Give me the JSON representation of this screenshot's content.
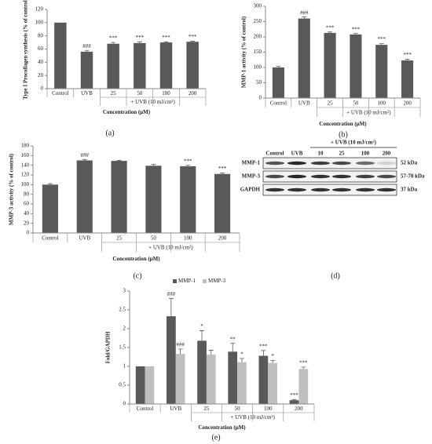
{
  "chart_data": [
    {
      "type": "bar",
      "caption": "(a)",
      "y_label": "Type I Procollagen synthesis (% of control)",
      "x_label": "Concentration (μM)",
      "group_label": "+ UVB (10 mJ/cm²)",
      "categories": [
        "Control",
        "UVB",
        "25",
        "50",
        "100",
        "200"
      ],
      "values": [
        100,
        56,
        68,
        69,
        70,
        71
      ],
      "errors": [
        0,
        2,
        2,
        2,
        1,
        1
      ],
      "sig_labels": [
        null,
        "###",
        "***",
        "***",
        "***",
        "***"
      ],
      "color": "#595959",
      "ylim": [
        0,
        120
      ],
      "yticks": [
        0,
        20,
        40,
        60,
        80,
        100,
        120
      ]
    },
    {
      "type": "bar",
      "caption": "(b)",
      "y_label": "MMP-1  activity (% of control)",
      "x_label": "Concentration (μM)",
      "group_label": "+ UVB (10 mJ/cm²)",
      "categories": [
        "Control",
        "UVB",
        "25",
        "50",
        "100",
        "200"
      ],
      "values": [
        100,
        260,
        213,
        208,
        174,
        123
      ],
      "errors": [
        4,
        5,
        3,
        3,
        4,
        4
      ],
      "sig_labels": [
        null,
        "###",
        "***",
        "***",
        "***",
        "***"
      ],
      "color": "#595959",
      "ylim": [
        0,
        300
      ],
      "yticks": [
        0,
        50,
        100,
        150,
        200,
        250,
        300
      ]
    },
    {
      "type": "bar",
      "caption": "(c)",
      "y_label": "MMP-3  activity (% of control)",
      "x_label": "Concentration (μM)",
      "group_label": "+ UVB (10 mJ/cm²)",
      "categories": [
        "Control",
        "UVB",
        "25",
        "50",
        "100",
        "200"
      ],
      "values": [
        100,
        150,
        149,
        139,
        138,
        122
      ],
      "errors": [
        2,
        2,
        1,
        3,
        2,
        2
      ],
      "sig_labels": [
        null,
        "###",
        null,
        null,
        "***",
        "***"
      ],
      "color": "#595959",
      "ylim": [
        0,
        180
      ],
      "yticks": [
        0,
        20,
        40,
        60,
        80,
        100,
        120,
        140,
        160,
        180
      ]
    },
    {
      "type": "grouped-bar",
      "caption": "(e)",
      "y_label": "Fold/GAPDH",
      "x_label": "Concentration (μM)",
      "group_label": "+ UVB (10 mJ/cm²)",
      "categories": [
        "Control",
        "UVB",
        "25",
        "50",
        "100",
        "200"
      ],
      "series": [
        {
          "name": "MMP-1",
          "color": "#595959",
          "values": [
            1,
            2.33,
            1.68,
            1.39,
            1.28,
            0.1
          ],
          "errors": [
            0,
            0.47,
            0.27,
            0.22,
            0.14,
            0.02
          ],
          "sig_labels": [
            null,
            "###",
            "*",
            "**",
            "***",
            "***"
          ]
        },
        {
          "name": "MMP-3",
          "color": "#bfbfbf",
          "values": [
            1,
            1.33,
            1.31,
            1.11,
            1.09,
            0.93
          ],
          "errors": [
            0,
            0.13,
            0.12,
            0.1,
            0.07,
            0.05
          ],
          "sig_labels": [
            null,
            "###",
            null,
            "*",
            "*",
            "***"
          ]
        }
      ],
      "ylim": [
        0,
        3
      ],
      "yticks": [
        0,
        0.5,
        1,
        1.5,
        2,
        2.5,
        3
      ]
    }
  ],
  "blot": {
    "caption": "(d)",
    "group_label": "+ UVB (10 mJ/cm²)",
    "lanes": [
      "Control",
      "UVB",
      "10",
      "25",
      "100",
      "200"
    ],
    "rows": [
      {
        "protein": "MMP-1",
        "size": "52 kDa"
      },
      {
        "protein": "MMP-3",
        "size": "57-70 kDa"
      },
      {
        "protein": "GAPDH",
        "size": "37 kDa"
      }
    ]
  }
}
